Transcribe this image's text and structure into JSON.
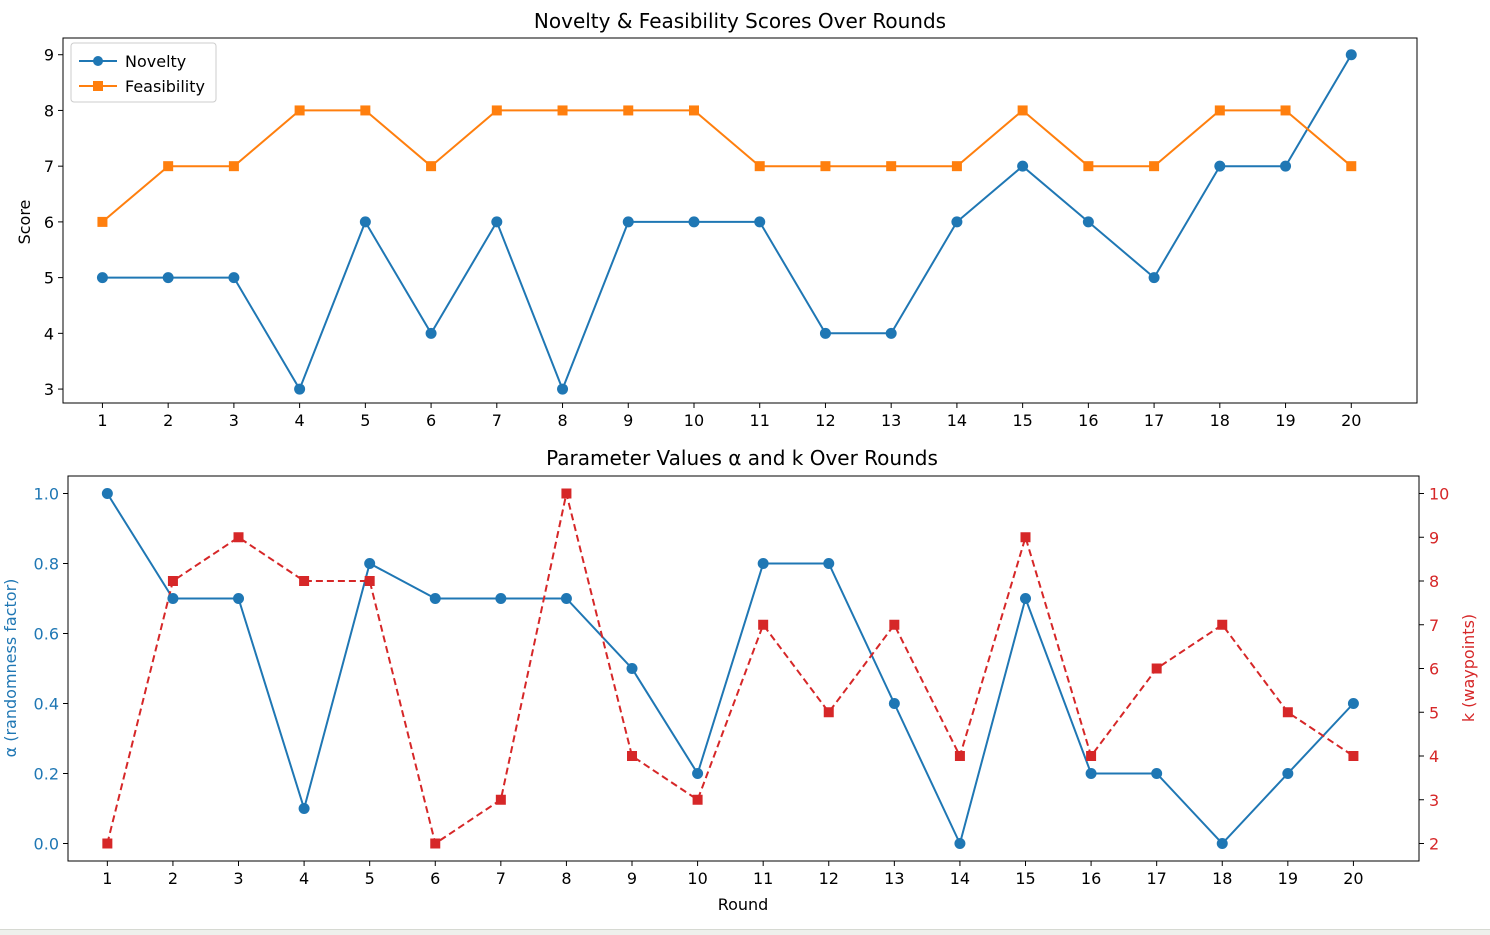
{
  "colors": {
    "blue": "#1f77b4",
    "orange": "#ff7f0e",
    "red": "#d62728",
    "axis": "#000000"
  },
  "chart_data": [
    {
      "type": "line",
      "title": "Novelty & Feasibility Scores Over Rounds",
      "xlabel": "",
      "ylabel": "Score",
      "x": [
        1,
        2,
        3,
        4,
        5,
        6,
        7,
        8,
        9,
        10,
        11,
        12,
        13,
        14,
        15,
        16,
        17,
        18,
        19,
        20
      ],
      "xlim": [
        0.4,
        21.0
      ],
      "ylim": [
        2.75,
        9.3
      ],
      "yticks": [
        3,
        4,
        5,
        6,
        7,
        8,
        9
      ],
      "grid": false,
      "legend": "top-left",
      "series": [
        {
          "name": "Novelty",
          "marker": "circle",
          "linestyle": "solid",
          "color": "#1f77b4",
          "values": [
            5,
            5,
            5,
            3,
            6,
            4,
            6,
            3,
            6,
            6,
            6,
            4,
            4,
            6,
            7,
            6,
            5,
            7,
            7,
            9
          ]
        },
        {
          "name": "Feasibility",
          "marker": "square",
          "linestyle": "solid",
          "color": "#ff7f0e",
          "values": [
            6,
            7,
            7,
            8,
            8,
            7,
            8,
            8,
            8,
            8,
            7,
            7,
            7,
            7,
            8,
            7,
            7,
            8,
            8,
            7
          ]
        }
      ]
    },
    {
      "type": "line",
      "title": "Parameter Values α and k Over Rounds",
      "xlabel": "Round",
      "ylabel": "α (randomness factor)",
      "y2label": "k (waypoints)",
      "x": [
        1,
        2,
        3,
        4,
        5,
        6,
        7,
        8,
        9,
        10,
        11,
        12,
        13,
        14,
        15,
        16,
        17,
        18,
        19,
        20
      ],
      "xlim": [
        0.4,
        21.0
      ],
      "ylim": [
        -0.05,
        1.05
      ],
      "yticks": [
        "0.0",
        "0.2",
        "0.4",
        "0.6",
        "0.8",
        "1.0"
      ],
      "y2lim": [
        1.6,
        10.4
      ],
      "y2ticks": [
        2,
        3,
        4,
        5,
        6,
        7,
        8,
        9,
        10
      ],
      "grid": false,
      "series": [
        {
          "name": "α",
          "axis": "left",
          "marker": "circle",
          "linestyle": "solid",
          "color": "#1f77b4",
          "values": [
            1.0,
            0.7,
            0.7,
            0.1,
            0.8,
            0.7,
            0.7,
            0.7,
            0.5,
            0.2,
            0.8,
            0.8,
            0.4,
            0.0,
            0.7,
            0.2,
            0.2,
            0.0,
            0.2,
            0.4
          ]
        },
        {
          "name": "k",
          "axis": "right",
          "marker": "square",
          "linestyle": "dashed",
          "color": "#d62728",
          "values": [
            2,
            8,
            9,
            8,
            8,
            2,
            3,
            10,
            4,
            3,
            7,
            5,
            7,
            4,
            9,
            4,
            6,
            7,
            5,
            4
          ]
        }
      ]
    }
  ]
}
